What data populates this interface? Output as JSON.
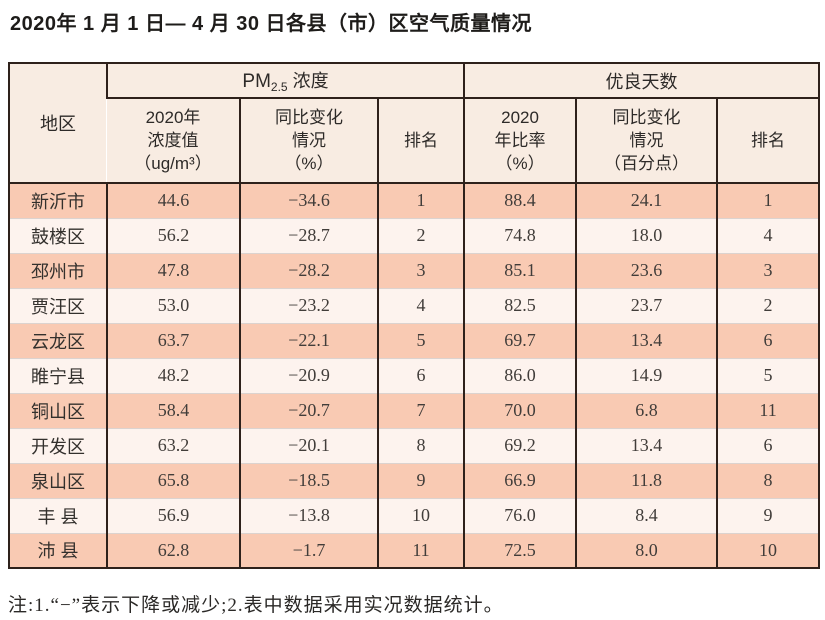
{
  "title": "2020年 1 月 1 日— 4 月 30 日各县（市）区空气质量情况",
  "colors": {
    "row_salmon": "#f9cab3",
    "row_light": "#fdf3ee",
    "header_bg": "#f8ece2",
    "border_dark": "#2e211b"
  },
  "table": {
    "region_header": "地区",
    "group_headers": [
      {
        "base": "PM",
        "subscript": "2.5",
        "suffix": " 浓度"
      },
      {
        "label": "优良天数"
      }
    ],
    "sub_headers": [
      "2020年\n浓度值\n（ug/m³）",
      "同比变化\n情况\n（%）",
      "排名",
      "2020\n年比率\n（%）",
      "同比变化\n情况\n（百分点）",
      "排名"
    ],
    "rows": [
      [
        "新沂市",
        "44.6",
        "−34.6",
        "1",
        "88.4",
        "24.1",
        "1"
      ],
      [
        "鼓楼区",
        "56.2",
        "−28.7",
        "2",
        "74.8",
        "18.0",
        "4"
      ],
      [
        "邳州市",
        "47.8",
        "−28.2",
        "3",
        "85.1",
        "23.6",
        "3"
      ],
      [
        "贾汪区",
        "53.0",
        "−23.2",
        "4",
        "82.5",
        "23.7",
        "2"
      ],
      [
        "云龙区",
        "63.7",
        "−22.1",
        "5",
        "69.7",
        "13.4",
        "6"
      ],
      [
        "睢宁县",
        "48.2",
        "−20.9",
        "6",
        "86.0",
        "14.9",
        "5"
      ],
      [
        "铜山区",
        "58.4",
        "−20.7",
        "7",
        "70.0",
        "6.8",
        "11"
      ],
      [
        "开发区",
        "63.2",
        "−20.1",
        "8",
        "69.2",
        "13.4",
        "6"
      ],
      [
        "泉山区",
        "65.8",
        "−18.5",
        "9",
        "66.9",
        "11.8",
        "8"
      ],
      [
        "丰 县",
        "56.9",
        "−13.8",
        "10",
        "76.0",
        "8.4",
        "9"
      ],
      [
        "沛 县",
        "62.8",
        "−1.7",
        "11",
        "72.5",
        "8.0",
        "10"
      ]
    ]
  },
  "note": "注:1.“−”表示下降或减少;2.表中数据采用实况数据统计。"
}
